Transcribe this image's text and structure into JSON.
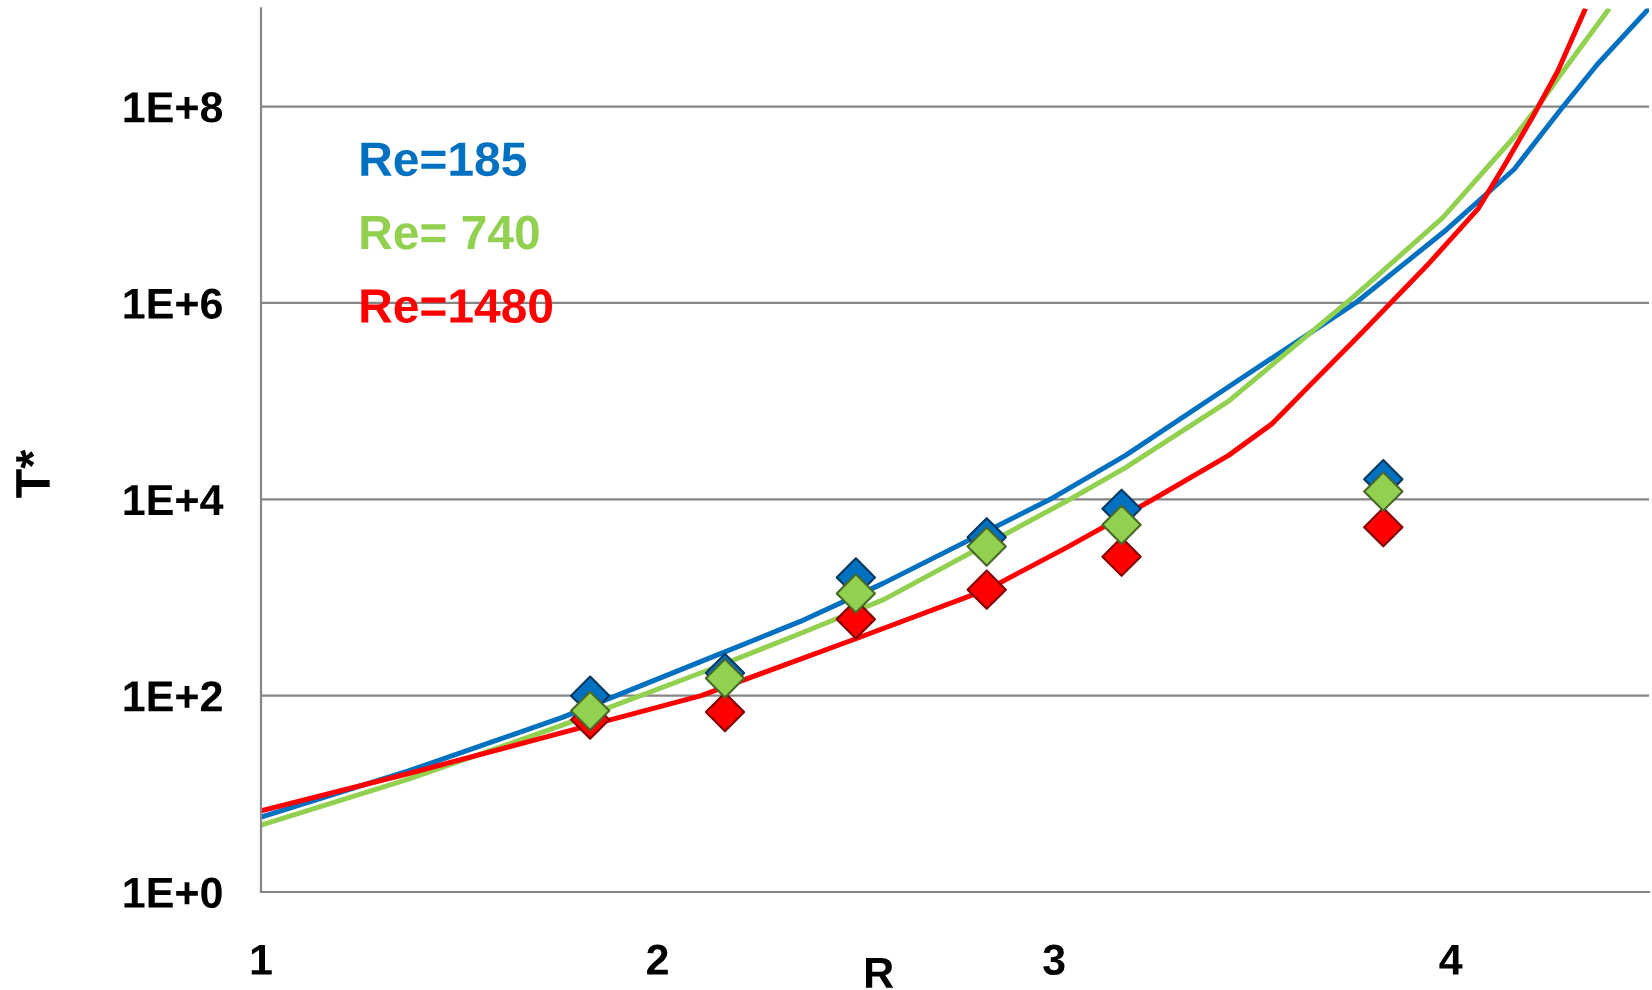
{
  "chart_data": {
    "type": "scatter",
    "xlabel": "R",
    "ylabel": "T*",
    "xlim": [
      1,
      4.5
    ],
    "ylim": [
      1,
      1000000000
    ],
    "xticks": [
      1,
      2,
      3,
      4
    ],
    "yticks": [
      {
        "value": 1,
        "label": "1E+0"
      },
      {
        "value": 100,
        "label": "1E+2"
      },
      {
        "value": 10000,
        "label": "1E+4"
      },
      {
        "value": 1000000,
        "label": "1E+6"
      },
      {
        "value": 100000000,
        "label": "1E+8"
      }
    ],
    "log": "y",
    "grid": "y",
    "legend": "top left",
    "line_style": "solid",
    "x": [
      1.83,
      2.17,
      2.5,
      2.83,
      3.17,
      3.83
    ],
    "series": [
      {
        "type": "line",
        "name": "Re=185",
        "color": "#0070c0",
        "marker": "none",
        "x": [
          1.0,
          1.37,
          1.76,
          2.14,
          2.36,
          2.57,
          2.99,
          3.18,
          3.44,
          3.76,
          3.99,
          4.16,
          4.28,
          4.37,
          4.5
        ],
        "values": [
          5.8,
          17,
          60,
          250,
          570,
          1400,
          10000,
          28000,
          140000,
          1000000,
          5600000,
          23000000,
          96000000,
          270000000,
          1000000000
        ]
      },
      {
        "type": "line",
        "name": "Re= 740",
        "color": "#92d050",
        "marker": "none",
        "x": [
          1.0,
          1.37,
          1.76,
          2.14,
          2.36,
          2.57,
          3.04,
          3.18,
          3.44,
          3.76,
          3.98,
          4.16,
          4.22,
          4.28,
          4.4
        ],
        "values": [
          4.8,
          14,
          50,
          190,
          430,
          950,
          10000,
          21000,
          100000,
          1200000,
          7400000,
          49000000,
          100000000,
          220000000,
          1000000000
        ]
      },
      {
        "type": "line",
        "name": "Re=1480",
        "color": "#ff0000",
        "marker": "none",
        "x": [
          1.0,
          1.37,
          1.76,
          2.11,
          2.5,
          2.83,
          3.03,
          3.25,
          3.44,
          3.55,
          3.79,
          3.94,
          4.07,
          4.14,
          4.21,
          4.27,
          4.34
        ],
        "values": [
          6.7,
          16,
          42,
          100,
          380,
          1200,
          3200,
          10000,
          28000,
          59000,
          570000,
          2400000,
          9200000,
          27000000,
          83000000,
          230000000,
          1000000000
        ]
      },
      {
        "color": "#ff0000",
        "marker": "diamond",
        "values": [
          57,
          68,
          600,
          1200,
          2600,
          5200
        ]
      },
      {
        "color": "#0070c0",
        "marker": "diamond",
        "values": [
          100,
          170,
          1600,
          4100,
          8000,
          16000
        ]
      },
      {
        "color": "#92d050",
        "marker": "diamond",
        "values": [
          70,
          150,
          1100,
          3300,
          5500,
          12000
        ]
      }
    ]
  }
}
